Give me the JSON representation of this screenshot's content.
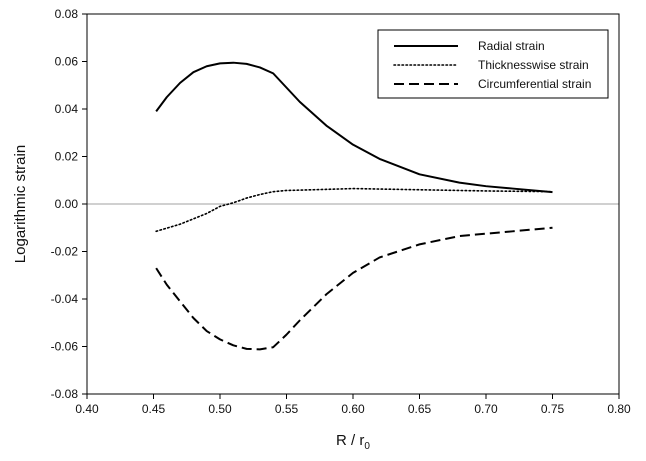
{
  "chart_data": {
    "type": "line",
    "title": "",
    "xlabel": {
      "main": "R / r",
      "subscript": "0"
    },
    "ylabel": "Logarithmic strain",
    "xlim": [
      0.4,
      0.8
    ],
    "ylim": [
      -0.08,
      0.08
    ],
    "x_ticks": [
      "0.40",
      "0.45",
      "0.50",
      "0.55",
      "0.60",
      "0.65",
      "0.70",
      "0.75",
      "0.80"
    ],
    "y_ticks": [
      "-0.08",
      "-0.06",
      "-0.04",
      "-0.02",
      "0.00",
      "0.02",
      "0.04",
      "0.06",
      "0.08"
    ],
    "zero_line": true,
    "grid": false,
    "legend_position": "top-right",
    "series": [
      {
        "name": "Radial strain",
        "style": "solid",
        "points": [
          [
            0.452,
            0.039
          ],
          [
            0.46,
            0.045
          ],
          [
            0.47,
            0.051
          ],
          [
            0.48,
            0.0555
          ],
          [
            0.49,
            0.058
          ],
          [
            0.5,
            0.0592
          ],
          [
            0.51,
            0.0595
          ],
          [
            0.52,
            0.059
          ],
          [
            0.53,
            0.0575
          ],
          [
            0.54,
            0.055
          ],
          [
            0.55,
            0.049
          ],
          [
            0.56,
            0.043
          ],
          [
            0.58,
            0.033
          ],
          [
            0.6,
            0.025
          ],
          [
            0.62,
            0.019
          ],
          [
            0.65,
            0.0125
          ],
          [
            0.68,
            0.009
          ],
          [
            0.7,
            0.0075
          ],
          [
            0.72,
            0.0065
          ],
          [
            0.75,
            0.005
          ]
        ]
      },
      {
        "name": "Thicknesswise strain",
        "style": "dotted",
        "points": [
          [
            0.452,
            -0.0115
          ],
          [
            0.47,
            -0.0085
          ],
          [
            0.49,
            -0.004
          ],
          [
            0.5,
            -0.001
          ],
          [
            0.51,
            0.0005
          ],
          [
            0.52,
            0.0025
          ],
          [
            0.53,
            0.004
          ],
          [
            0.54,
            0.0052
          ],
          [
            0.55,
            0.0057
          ],
          [
            0.57,
            0.006
          ],
          [
            0.6,
            0.0065
          ],
          [
            0.62,
            0.0063
          ],
          [
            0.65,
            0.006
          ],
          [
            0.7,
            0.0055
          ],
          [
            0.75,
            0.0052
          ]
        ]
      },
      {
        "name": "Circumferential strain",
        "style": "dashed",
        "points": [
          [
            0.452,
            -0.027
          ],
          [
            0.46,
            -0.034
          ],
          [
            0.47,
            -0.041
          ],
          [
            0.48,
            -0.048
          ],
          [
            0.49,
            -0.0535
          ],
          [
            0.5,
            -0.057
          ],
          [
            0.51,
            -0.0595
          ],
          [
            0.52,
            -0.061
          ],
          [
            0.53,
            -0.0612
          ],
          [
            0.54,
            -0.0603
          ],
          [
            0.55,
            -0.055
          ],
          [
            0.56,
            -0.049
          ],
          [
            0.58,
            -0.038
          ],
          [
            0.6,
            -0.029
          ],
          [
            0.62,
            -0.0225
          ],
          [
            0.65,
            -0.017
          ],
          [
            0.68,
            -0.0135
          ],
          [
            0.7,
            -0.0125
          ],
          [
            0.72,
            -0.0115
          ],
          [
            0.75,
            -0.01
          ]
        ]
      }
    ],
    "colors": {
      "lines": "#000000",
      "zero_line": "#a0a0a0",
      "axes": "#000000"
    }
  }
}
